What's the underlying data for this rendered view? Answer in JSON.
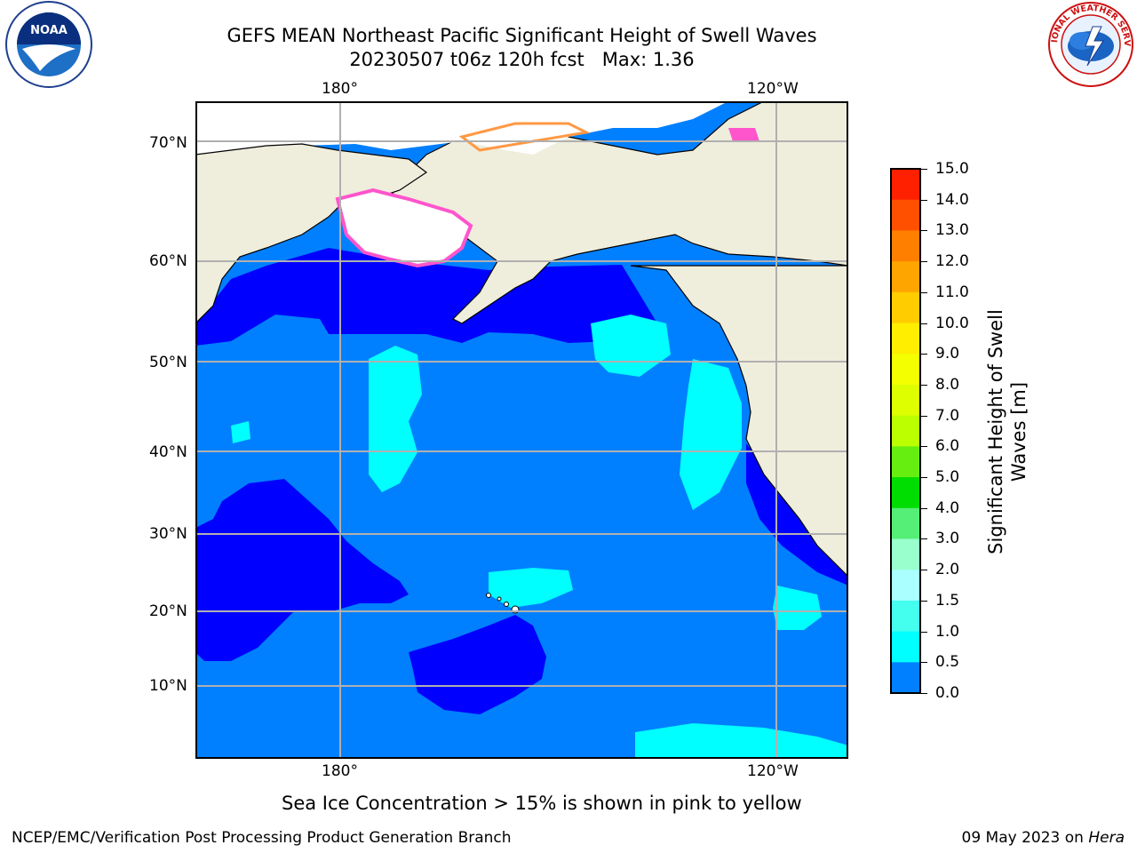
{
  "title_line1": "GEFS MEAN Northeast Pacific Significant Height of Swell Waves",
  "title_line2": "20230507 t06z 120h fcst   Max: 1.36",
  "longitude_ticks_top": [
    "180°",
    "120°W"
  ],
  "longitude_ticks_bottom": [
    "180°",
    "120°W"
  ],
  "latitude_ticks": [
    "70°N",
    "60°N",
    "50°N",
    "40°N",
    "30°N",
    "20°N",
    "10°N"
  ],
  "colorbar": {
    "label_line1": "Significant Height of Swell",
    "label_line2": "Waves [m]",
    "ticks": [
      "15.0",
      "14.0",
      "13.0",
      "12.0",
      "11.0",
      "10.0",
      "9.0",
      "8.0",
      "7.0",
      "6.0",
      "5.0",
      "4.0",
      "3.0",
      "2.0",
      "1.5",
      "1.0",
      "0.5",
      "0.0"
    ],
    "colors": [
      "#ff0000",
      "#ff2000",
      "#ff5000",
      "#ff7f00",
      "#ffa500",
      "#ffcc00",
      "#ffee00",
      "#f4ff00",
      "#ddff00",
      "#bbff00",
      "#66ee11",
      "#00dd00",
      "#55ee77",
      "#99ffcc",
      "#aaffff",
      "#44ffee",
      "#00ffff",
      "#0080ff",
      "#0000ff"
    ]
  },
  "map_colors": {
    "land": "#efeddc",
    "water_0_5": "#0000ff",
    "water_0_5_1_0": "#0080ff",
    "water_1_0_1_5": "#00ffff",
    "water_1_5_2_0": "#44ffee",
    "sea_ice": "#ff55cc",
    "grid": "#b0b0b0"
  },
  "note": "Sea Ice Concentration > 15% is shown in pink to yellow",
  "footer_left": "NCEP/EMC/Verification Post Processing Product Generation Branch",
  "footer_right_prefix": "09 May 2023 on ",
  "footer_right_machine": "Hera",
  "logo_noaa_text": "NOAA",
  "logo_nws_text": "NATIONAL WEATHER SERVICE"
}
